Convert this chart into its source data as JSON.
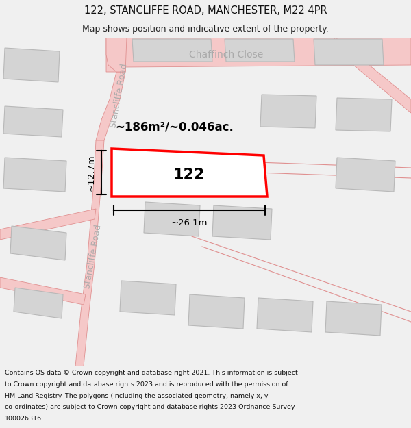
{
  "title_line1": "122, STANCLIFFE ROAD, MANCHESTER, M22 4PR",
  "title_line2": "Map shows position and indicative extent of the property.",
  "footer_text": "Contains OS data © Crown copyright and database right 2021. This information is subject to Crown copyright and database rights 2023 and is reproduced with the permission of HM Land Registry. The polygons (including the associated geometry, namely x, y co-ordinates) are subject to Crown copyright and database rights 2023 Ordnance Survey 100026316.",
  "area_label": "~186m²/~0.046ac.",
  "property_number": "122",
  "width_label": "~26.1m",
  "height_label": "~12.7m",
  "bg_color": "#f0f0f0",
  "map_bg_color": "#ffffff",
  "road_fill": "#f5c8c8",
  "road_line": "#e09090",
  "bld_fill": "#d4d4d4",
  "bld_edge": "#b8b8b8",
  "highlight_color": "#ff0000",
  "highlight_fill": "#ffffff",
  "road_label_color": "#aaaaaa",
  "dim_color": "#000000",
  "title_fontsize": 10.5,
  "subtitle_fontsize": 9,
  "footer_fontsize": 6.8
}
